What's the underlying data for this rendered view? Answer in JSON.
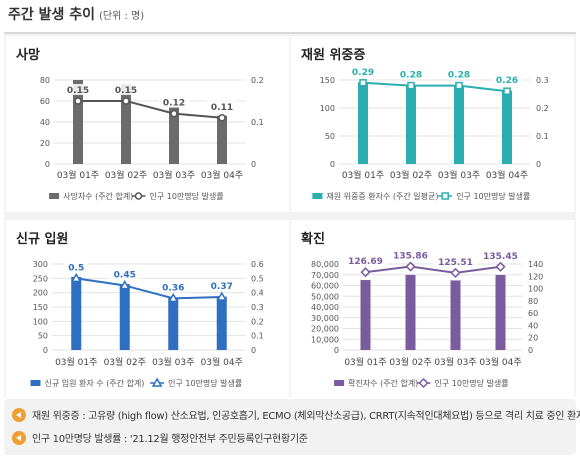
{
  "header": {
    "title": "주간 발생 추이",
    "unit": "(단위 : 명)"
  },
  "notes": [
    "재원 위중증 : 고유량 (high flow) 산소요법, 인공호흡기, ECMO (체외막산소공급), CRRT(지속적인대체요법) 등으로 격리 치료 중인 환자",
    "인구 10만명당 발생률 : '21.12월 행정안전부 주민등록인구현황기준"
  ],
  "chart_data": [
    {
      "id": "deaths",
      "type": "bar",
      "title": "사망",
      "categories": [
        "03월 01주",
        "03월 02주",
        "03월 03주",
        "03월 04주"
      ],
      "series": [
        {
          "name": "사망자수 (주간 합계)",
          "type": "bar",
          "axis": "left",
          "color": "#6b6b6b",
          "values": [
            80,
            76,
            54,
            46
          ]
        },
        {
          "name": "인구 10만명당 발생률",
          "type": "line",
          "axis": "right",
          "color": "#555555",
          "marker": "circle",
          "values": [
            0.15,
            0.15,
            0.12,
            0.11
          ]
        }
      ],
      "y_left": {
        "range": [
          0,
          80
        ],
        "ticks": [
          0,
          20,
          40,
          60,
          80
        ]
      },
      "y_right": {
        "range": [
          0,
          0.2
        ],
        "ticks": [
          0,
          0.1,
          0.2
        ]
      },
      "data_labels": [
        "0.15",
        "0.15",
        "0.12",
        "0.11"
      ],
      "legend_position": "bottom"
    },
    {
      "id": "critical",
      "type": "bar",
      "title": "재원 위중증",
      "categories": [
        "03월 01주",
        "03월 02주",
        "03월 03주",
        "03월 04주"
      ],
      "series": [
        {
          "name": "재원 위중증 환자수 (주간 일평균)",
          "type": "bar",
          "axis": "left",
          "color": "#2aaeb0",
          "values": [
            146,
            140,
            139,
            131
          ]
        },
        {
          "name": "인구 10만명당 발생률",
          "type": "line",
          "axis": "right",
          "color": "#2aaeb0",
          "marker": "square",
          "values": [
            0.29,
            0.28,
            0.28,
            0.26
          ]
        }
      ],
      "y_left": {
        "range": [
          0,
          150
        ],
        "ticks": [
          0,
          50,
          100,
          150
        ]
      },
      "y_right": {
        "range": [
          0,
          0.3
        ],
        "ticks": [
          0,
          0.1,
          0.2,
          0.3
        ]
      },
      "data_labels": [
        "0.29",
        "0.28",
        "0.28",
        "0.26"
      ],
      "legend_position": "bottom"
    },
    {
      "id": "admissions",
      "type": "bar",
      "title": "신규 입원",
      "categories": [
        "03월 01주",
        "03월 02주",
        "03월 03주",
        "03월 04주"
      ],
      "series": [
        {
          "name": "신규 입원 환자 수 (주간 합계)",
          "type": "bar",
          "axis": "left",
          "color": "#2f6fc2",
          "values": [
            255,
            230,
            182,
            186
          ]
        },
        {
          "name": "인구 10만명당 발생률",
          "type": "line",
          "axis": "right",
          "color": "#2f6fc2",
          "marker": "triangle",
          "values": [
            0.5,
            0.45,
            0.36,
            0.37
          ]
        }
      ],
      "y_left": {
        "range": [
          0,
          300
        ],
        "ticks": [
          0,
          50,
          100,
          150,
          200,
          250,
          300
        ]
      },
      "y_right": {
        "range": [
          0,
          0.6
        ],
        "ticks": [
          0,
          0.1,
          0.2,
          0.3,
          0.4,
          0.5,
          0.6
        ]
      },
      "data_labels": [
        "0.5",
        "0.45",
        "0.36",
        "0.37"
      ],
      "legend_position": "bottom"
    },
    {
      "id": "confirmed",
      "type": "bar",
      "title": "확진",
      "categories": [
        "03월 01주",
        "03월 02주",
        "03월 03주",
        "03월 04주"
      ],
      "series": [
        {
          "name": "확진자수 (주간 합계)",
          "type": "bar",
          "axis": "left",
          "color": "#7a5c9e",
          "values": [
            65100,
            69900,
            64700,
            69800
          ]
        },
        {
          "name": "인구 10만명당 발생률",
          "type": "line",
          "axis": "right",
          "color": "#7a5c9e",
          "marker": "diamond",
          "values": [
            126.69,
            135.86,
            125.51,
            135.45
          ]
        }
      ],
      "y_left": {
        "range": [
          0,
          80000
        ],
        "ticks": [
          "0",
          "10,000",
          "20,000",
          "30,000",
          "40,000",
          "50,000",
          "60,000",
          "70,000",
          "80,000"
        ]
      },
      "y_right": {
        "range": [
          0,
          140
        ],
        "ticks": [
          0,
          20,
          40,
          60,
          80,
          100,
          120,
          140
        ]
      },
      "data_labels": [
        "126.69",
        "135.86",
        "125.51",
        "135.45"
      ],
      "legend_position": "bottom"
    }
  ]
}
